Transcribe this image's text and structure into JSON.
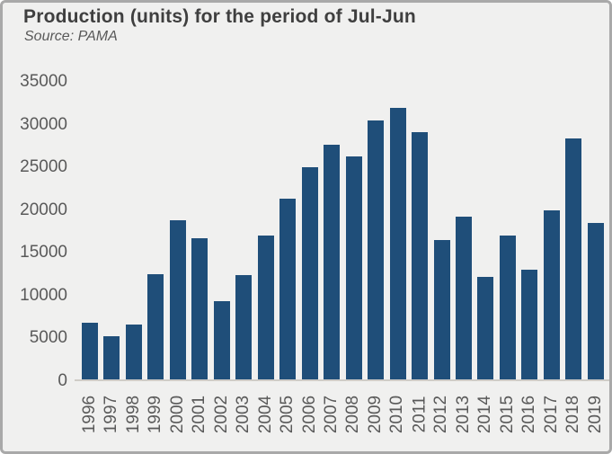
{
  "chart_data": {
    "type": "bar",
    "title": "Production (units) for the period of Jul-Jun",
    "subtitle": "Source: PAMA",
    "categories": [
      "1996",
      "1997",
      "1998",
      "1999",
      "2000",
      "2001",
      "2002",
      "2003",
      "2004",
      "2005",
      "2006",
      "2007",
      "2008",
      "2009",
      "2010",
      "2011",
      "2012",
      "2013",
      "2014",
      "2015",
      "2016",
      "2017",
      "2018",
      "2019"
    ],
    "values": [
      6600,
      5000,
      6400,
      12300,
      18600,
      16500,
      9200,
      12200,
      16800,
      21100,
      24800,
      27400,
      26100,
      30300,
      31700,
      28900,
      16300,
      19000,
      12000,
      16800,
      12800,
      19800,
      28200,
      18300
    ],
    "xlabel": "",
    "ylabel": "",
    "ylim": [
      0,
      35000
    ],
    "yticks": [
      0,
      5000,
      10000,
      15000,
      20000,
      25000,
      30000,
      35000
    ],
    "grid": false,
    "legend": false,
    "bar_color": "#1F4E79",
    "background_color": "#F0F0EF",
    "border_color": "#A9A9A9",
    "axis_line_color": "#CFCCC7",
    "title_color": "#3F3F3F",
    "label_color": "#595959"
  }
}
